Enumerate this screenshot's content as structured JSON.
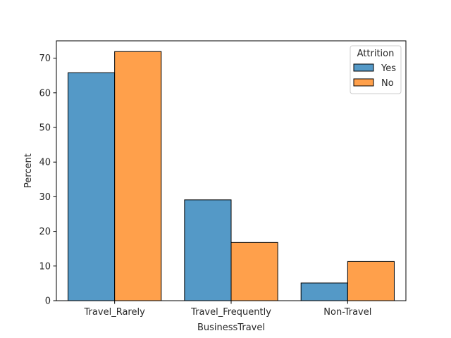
{
  "chart_data": {
    "type": "bar",
    "title": "",
    "xlabel": "BusinessTravel",
    "ylabel": "Percent",
    "ylim": [
      0,
      75
    ],
    "yticks": [
      0,
      10,
      20,
      30,
      40,
      50,
      60,
      70
    ],
    "categories": [
      "Travel_Rarely",
      "Travel_Frequently",
      "Non-Travel"
    ],
    "series": [
      {
        "name": "Yes",
        "values": [
          65.8,
          29.1,
          5.1
        ],
        "color": "#5499c7"
      },
      {
        "name": "No",
        "values": [
          71.9,
          16.8,
          11.3
        ],
        "color": "#ffa04b"
      }
    ],
    "legend": {
      "title": "Attrition",
      "placement": "top-right"
    },
    "grid": false
  }
}
